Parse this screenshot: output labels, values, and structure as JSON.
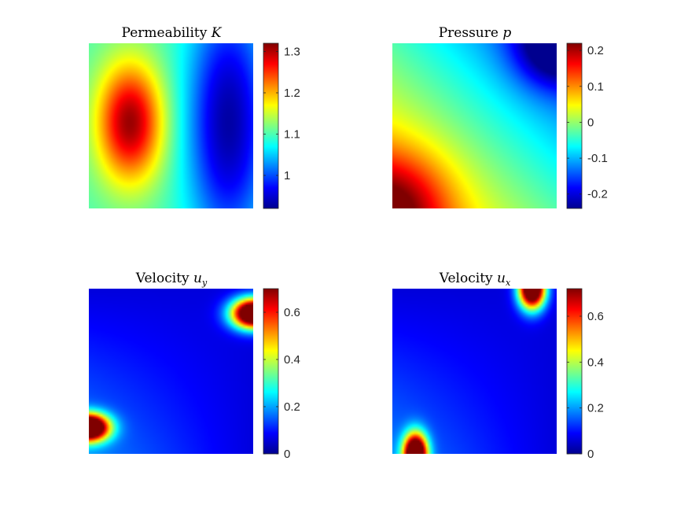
{
  "colormap": [
    "#00008f",
    "#0000ff",
    "#0080ff",
    "#00ffff",
    "#80ff80",
    "#ffff00",
    "#ff8000",
    "#ff0000",
    "#800000"
  ],
  "chart_data": [
    {
      "type": "heatmap",
      "title": "Permeability ",
      "title_var": "K",
      "title_sub": "",
      "field": "permeability",
      "clim": [
        0.92,
        1.32
      ],
      "colorbar_ticks": [
        {
          "value": 1.3,
          "label": "1.3"
        },
        {
          "value": 1.2,
          "label": "1.2"
        },
        {
          "value": 1.1,
          "label": "1.1"
        },
        {
          "value": 1.0,
          "label": "1"
        }
      ]
    },
    {
      "type": "heatmap",
      "title": "Pressure ",
      "title_var": "p",
      "title_sub": "",
      "field": "pressure",
      "clim": [
        -0.24,
        0.22
      ],
      "colorbar_ticks": [
        {
          "value": 0.2,
          "label": "0.2"
        },
        {
          "value": 0.1,
          "label": "0.1"
        },
        {
          "value": 0.0,
          "label": "0"
        },
        {
          "value": -0.1,
          "label": "-0.1"
        },
        {
          "value": -0.2,
          "label": "-0.2"
        }
      ]
    },
    {
      "type": "heatmap",
      "title": "Velocity ",
      "title_var": "u",
      "title_sub": "y",
      "field": "velocity_y",
      "clim": [
        0,
        0.7
      ],
      "colorbar_ticks": [
        {
          "value": 0.6,
          "label": "0.6"
        },
        {
          "value": 0.4,
          "label": "0.4"
        },
        {
          "value": 0.2,
          "label": "0.2"
        },
        {
          "value": 0.0,
          "label": "0"
        }
      ]
    },
    {
      "type": "heatmap",
      "title": "Velocity ",
      "title_var": "u",
      "title_sub": "x",
      "field": "velocity_x",
      "clim": [
        0,
        0.72
      ],
      "colorbar_ticks": [
        {
          "value": 0.6,
          "label": "0.6"
        },
        {
          "value": 0.4,
          "label": "0.4"
        },
        {
          "value": 0.2,
          "label": "0.2"
        },
        {
          "value": 0.0,
          "label": "0"
        }
      ]
    }
  ]
}
